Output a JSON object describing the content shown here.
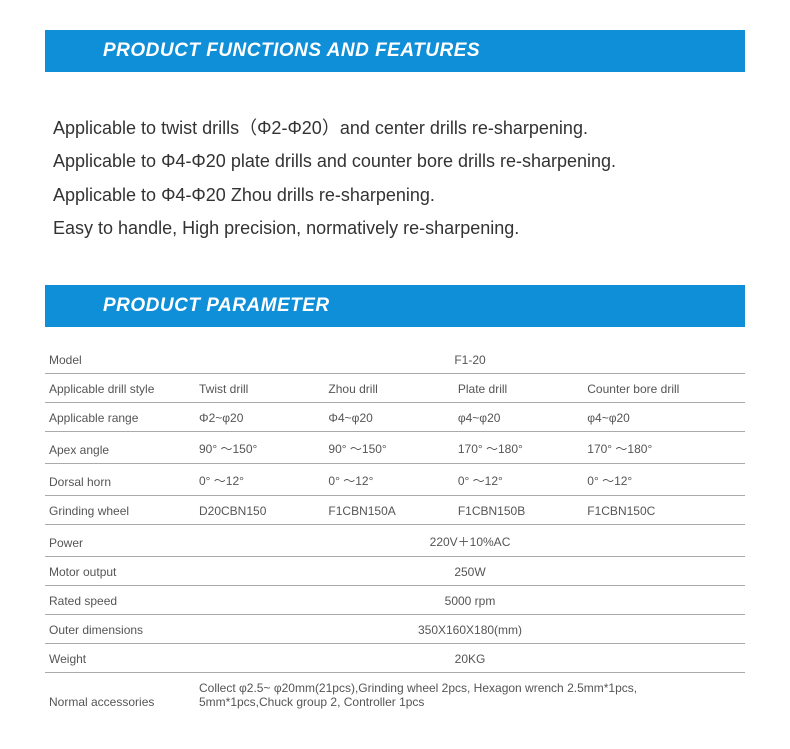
{
  "colors": {
    "header_bg": "#0f8fd8",
    "header_text": "#ffffff",
    "body_text": "#333333",
    "cell_text": "#555555",
    "rule": "#aaaaaa",
    "page_bg": "#ffffff"
  },
  "sections": {
    "features_title": "PRODUCT FUNCTIONS AND FEATURES",
    "parameter_title": "PRODUCT PARAMETER"
  },
  "features": [
    "Applicable to twist drills（Φ2-Φ20）and center drills re-sharpening.",
    "Applicable to Φ4-Φ20 plate drills and counter bore drills re-sharpening.",
    "Applicable to Φ4-Φ20 Zhou drills re-sharpening.",
    "Easy to handle, High precision, normatively re-sharpening."
  ],
  "param_labels": {
    "model": "Model",
    "drill_style": "Applicable drill style",
    "range": "Applicable range",
    "apex": "Apex angle",
    "dorsal": "Dorsal horn",
    "wheel": "Grinding wheel",
    "power": "Power",
    "motor": "Motor output",
    "speed": "Rated speed",
    "dims": "Outer dimensions",
    "weight": "Weight",
    "accessories": "Normal accessories"
  },
  "param_values": {
    "model": "F1-20",
    "styles": [
      "Twist drill",
      "Zhou drill",
      "Plate drill",
      "Counter bore drill"
    ],
    "ranges": [
      "Φ2~φ20",
      "Φ4~φ20",
      "φ4~φ20",
      "φ4~φ20"
    ],
    "apex": [
      "90° ～150°",
      "90° ～150°",
      "170° ～180°",
      "170° ～180°"
    ],
    "dorsal": [
      "0° ～12°",
      "0° ～12°",
      "0° ～12°",
      "0° ～12°"
    ],
    "wheel": [
      "D20CBN150",
      "F1CBN150A",
      "F1CBN150B",
      "F1CBN150C"
    ],
    "power": "220V＋10%AC",
    "motor": "250W",
    "speed": "5000 rpm",
    "dims": "350X160X180(mm)",
    "weight": "20KG",
    "accessories": "Collect φ2.5~ φ20mm(21pcs),Grinding wheel 2pcs, Hexagon wrench 2.5mm*1pcs, 5mm*1pcs,Chuck group 2, Controller 1pcs"
  }
}
